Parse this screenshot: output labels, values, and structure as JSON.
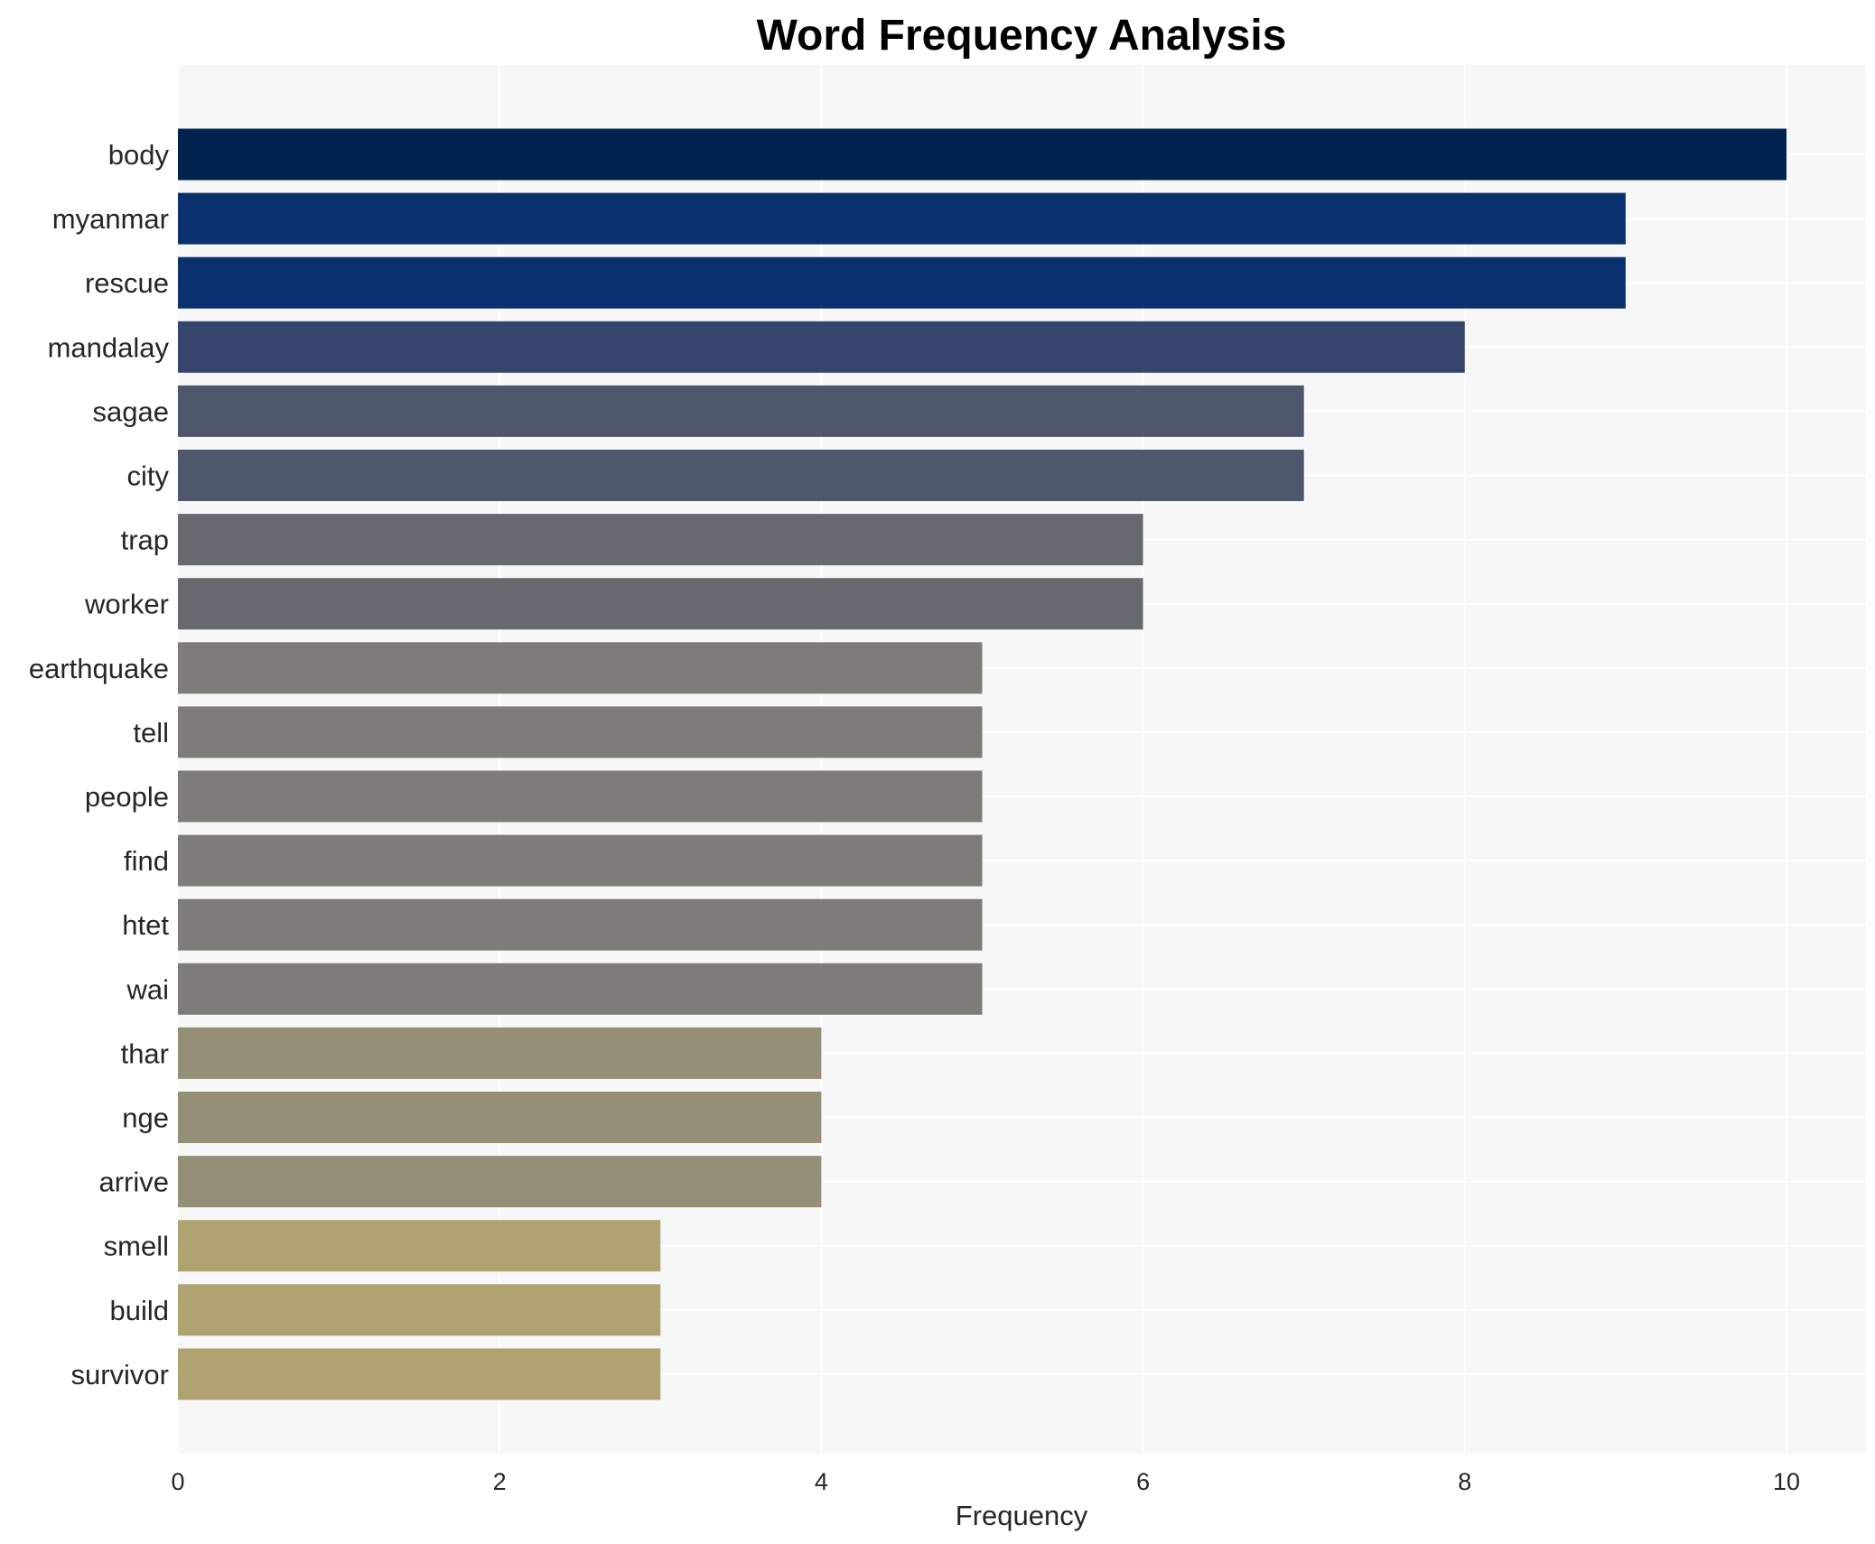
{
  "chart_data": {
    "type": "bar",
    "orientation": "horizontal",
    "title": "Word Frequency Analysis",
    "xlabel": "Frequency",
    "ylabel": "",
    "xlim": [
      0,
      10.5
    ],
    "xticks": [
      0,
      2,
      4,
      6,
      8,
      10
    ],
    "grid": true,
    "legend": "none",
    "categories": [
      "body",
      "myanmar",
      "rescue",
      "mandalay",
      "sagae",
      "city",
      "trap",
      "worker",
      "earthquake",
      "tell",
      "people",
      "find",
      "htet",
      "wai",
      "thar",
      "nge",
      "arrive",
      "smell",
      "build",
      "survivor"
    ],
    "values": [
      10,
      9,
      9,
      8,
      7,
      7,
      6,
      6,
      5,
      5,
      5,
      5,
      5,
      5,
      4,
      4,
      4,
      3,
      3,
      3
    ],
    "colors": {
      "10": "#00224e",
      "9": "#0a316d",
      "8": "#35456c",
      "7": "#4f576c",
      "6": "#666970",
      "5": "#7d7c78",
      "4": "#958f78",
      "3": "#aea371"
    },
    "plot_background": "#f7f7f7",
    "grid_color": "#ffffff"
  }
}
